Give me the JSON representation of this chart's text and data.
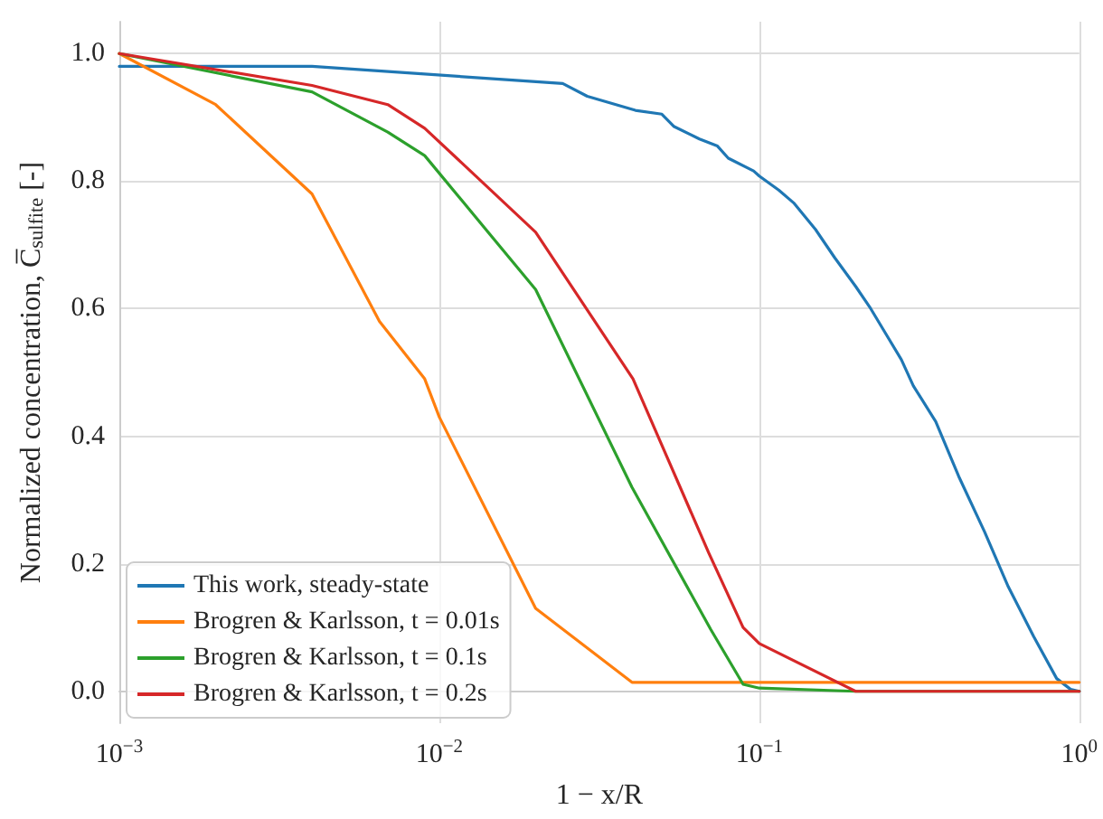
{
  "chart_data": {
    "type": "line",
    "xlabel": "1 − x/R",
    "ylabel": "Normalized concentration, C̅$_{sulfite}$ [-]",
    "log": "x",
    "xlim": [
      0.001,
      1
    ],
    "xticks": [
      {
        "value": 0.001,
        "label": "10$^{−3}$"
      },
      {
        "value": 0.01,
        "label": "10$^{−2}$"
      },
      {
        "value": 0.1,
        "label": "10$^{−1}$"
      },
      {
        "value": 1,
        "label": "10$^{0}$"
      }
    ],
    "ylim": [
      -0.05,
      1.05
    ],
    "yticks": [
      {
        "value": 0,
        "label": "0.0"
      },
      {
        "value": 0.2,
        "label": "0.2"
      },
      {
        "value": 0.4,
        "label": "0.4"
      },
      {
        "value": 0.6,
        "label": "0.6"
      },
      {
        "value": 0.8,
        "label": "0.8"
      },
      {
        "value": 1,
        "label": "1.0"
      }
    ],
    "grid": true,
    "legend": "bottom left",
    "marker": "none",
    "line_style": "solid",
    "series": [
      {
        "name": "This work, steady-state",
        "color": "#1f77b4",
        "x": [
          0.001,
          0.004,
          0.0243,
          0.029,
          0.041,
          0.0496,
          0.054,
          0.065,
          0.074,
          0.08,
          0.096,
          0.1,
          0.115,
          0.128,
          0.15,
          0.172,
          0.2,
          0.223,
          0.251,
          0.278,
          0.303,
          0.356,
          0.42,
          0.506,
          0.6,
          0.72,
          0.85,
          0.94,
          1.0
        ],
        "values": [
          0.98,
          0.98,
          0.953,
          0.933,
          0.911,
          0.905,
          0.886,
          0.866,
          0.855,
          0.836,
          0.816,
          0.808,
          0.786,
          0.766,
          0.724,
          0.68,
          0.635,
          0.6,
          0.557,
          0.52,
          0.479,
          0.423,
          0.337,
          0.25,
          0.164,
          0.086,
          0.02,
          0.003,
          0.0
        ]
      },
      {
        "name": "Brogren & Karlsson, t = 0.01s",
        "color": "#ff7f0e",
        "x": [
          0.001,
          0.002,
          0.004,
          0.0065,
          0.009,
          0.01,
          0.02,
          0.04,
          1.0
        ],
        "values": [
          1.0,
          0.92,
          0.78,
          0.58,
          0.49,
          0.43,
          0.13,
          0.014,
          0.014
        ]
      },
      {
        "name": "Brogren & Karlsson, t = 0.1s",
        "color": "#2ca02c",
        "x": [
          0.001,
          0.004,
          0.0069,
          0.009,
          0.02,
          0.04,
          0.0705,
          0.089,
          0.1,
          0.2,
          1.0
        ],
        "values": [
          1.0,
          0.94,
          0.877,
          0.84,
          0.63,
          0.32,
          0.097,
          0.011,
          0.005,
          0.0,
          0.0
        ]
      },
      {
        "name": "Brogren & Karlsson, t = 0.2s",
        "color": "#d62728",
        "x": [
          0.001,
          0.004,
          0.0069,
          0.009,
          0.02,
          0.0403,
          0.0695,
          0.089,
          0.1,
          0.2,
          1.0
        ],
        "values": [
          1.0,
          0.95,
          0.92,
          0.883,
          0.72,
          0.49,
          0.217,
          0.1,
          0.075,
          0.0,
          0.0
        ]
      }
    ]
  }
}
